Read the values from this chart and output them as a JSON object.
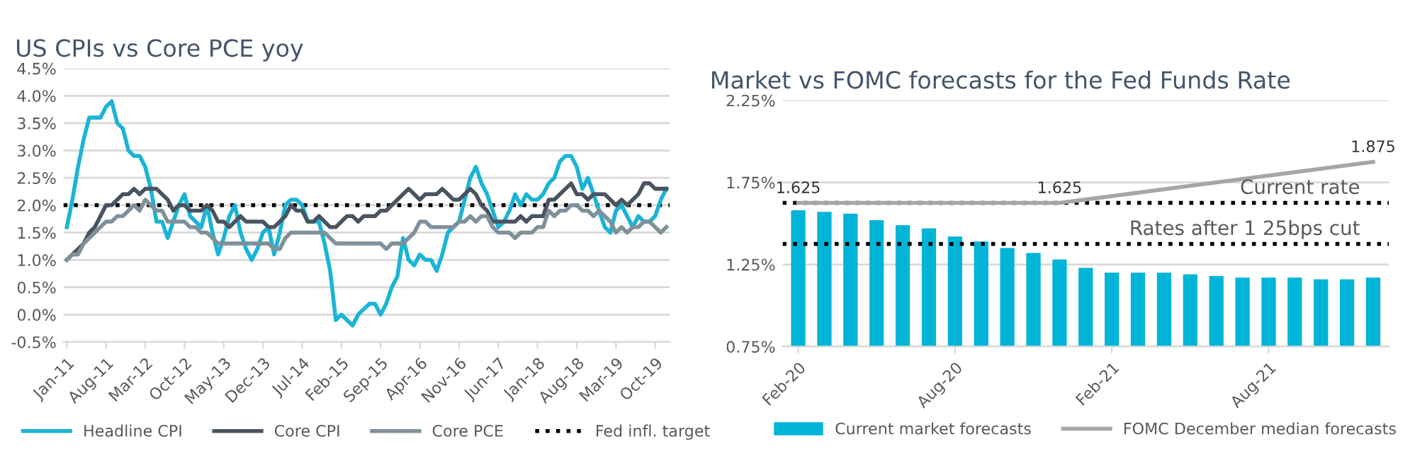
{
  "chart_data": [
    {
      "type": "line",
      "title": "US CPIs vs Core PCE yoy",
      "categories": [
        "Jan-11",
        null,
        null,
        null,
        null,
        null,
        null,
        "Aug-11",
        null,
        null,
        null,
        null,
        null,
        null,
        "Mar-12",
        null,
        null,
        null,
        null,
        null,
        null,
        "Oct-12",
        null,
        null,
        null,
        null,
        null,
        null,
        "May-13",
        null,
        null,
        null,
        null,
        null,
        null,
        "Dec-13",
        null,
        null,
        null,
        null,
        null,
        null,
        "Jul-14",
        null,
        null,
        null,
        null,
        null,
        null,
        "Feb-15",
        null,
        null,
        null,
        null,
        null,
        null,
        "Sep-15",
        null,
        null,
        null,
        null,
        null,
        null,
        "Apr-16",
        null,
        null,
        null,
        null,
        null,
        null,
        "Nov-16",
        null,
        null,
        null,
        null,
        null,
        null,
        "Jun-17",
        null,
        null,
        null,
        null,
        null,
        null,
        "Jan-18",
        null,
        null,
        null,
        null,
        null,
        null,
        "Aug-18",
        null,
        null,
        null,
        null,
        null,
        null,
        "Mar-19",
        null,
        null,
        null,
        null,
        null,
        null,
        "Oct-19",
        null,
        null
      ],
      "series": [
        {
          "name": "Headline CPI",
          "color": "#1ab4d6",
          "values": [
            1.6,
            2.1,
            2.7,
            3.2,
            3.6,
            3.6,
            3.6,
            3.8,
            3.9,
            3.5,
            3.4,
            3.0,
            2.9,
            2.9,
            2.7,
            2.3,
            1.7,
            1.7,
            1.4,
            1.7,
            2.0,
            2.2,
            1.8,
            1.7,
            1.6,
            2.0,
            1.5,
            1.1,
            1.4,
            1.8,
            2.0,
            1.5,
            1.2,
            1.0,
            1.2,
            1.5,
            1.6,
            1.1,
            1.5,
            2.0,
            2.1,
            2.1,
            2.0,
            1.7,
            1.7,
            1.7,
            1.3,
            0.8,
            -0.1,
            0.0,
            -0.1,
            -0.2,
            0.0,
            0.1,
            0.2,
            0.2,
            0.0,
            0.2,
            0.5,
            0.7,
            1.4,
            1.0,
            0.9,
            1.1,
            1.0,
            1.0,
            0.8,
            1.1,
            1.5,
            1.6,
            1.7,
            2.1,
            2.5,
            2.7,
            2.4,
            2.2,
            1.9,
            1.6,
            1.7,
            1.9,
            2.2,
            2.0,
            2.2,
            2.1,
            2.1,
            2.2,
            2.4,
            2.5,
            2.8,
            2.9,
            2.9,
            2.7,
            2.3,
            2.5,
            2.2,
            1.9,
            1.6,
            1.5,
            1.9,
            2.0,
            1.8,
            1.6,
            1.8,
            1.7,
            1.7,
            1.8,
            2.1,
            2.3
          ]
        },
        {
          "name": "Core CPI",
          "color": "#4a5460",
          "values": [
            1.0,
            1.1,
            1.2,
            1.3,
            1.5,
            1.6,
            1.8,
            2.0,
            2.0,
            2.1,
            2.2,
            2.2,
            2.3,
            2.2,
            2.3,
            2.3,
            2.3,
            2.2,
            2.1,
            1.9,
            2.0,
            2.0,
            1.9,
            1.9,
            1.9,
            2.0,
            1.9,
            1.7,
            1.7,
            1.6,
            1.7,
            1.8,
            1.7,
            1.7,
            1.7,
            1.7,
            1.6,
            1.6,
            1.7,
            1.8,
            2.0,
            1.9,
            1.9,
            1.7,
            1.7,
            1.8,
            1.7,
            1.6,
            1.6,
            1.7,
            1.8,
            1.8,
            1.7,
            1.8,
            1.8,
            1.8,
            1.9,
            1.9,
            2.0,
            2.1,
            2.2,
            2.3,
            2.2,
            2.1,
            2.2,
            2.2,
            2.2,
            2.3,
            2.2,
            2.1,
            2.1,
            2.2,
            2.3,
            2.2,
            2.0,
            1.9,
            1.7,
            1.7,
            1.7,
            1.7,
            1.7,
            1.8,
            1.7,
            1.8,
            1.8,
            1.8,
            2.1,
            2.1,
            2.2,
            2.3,
            2.4,
            2.2,
            2.2,
            2.1,
            2.2,
            2.2,
            2.2,
            2.1,
            2.0,
            2.1,
            2.0,
            2.1,
            2.2,
            2.4,
            2.4,
            2.3,
            2.3,
            2.3
          ]
        },
        {
          "name": "Core PCE",
          "color": "#7f9099",
          "values": [
            1.0,
            1.1,
            1.1,
            1.3,
            1.4,
            1.5,
            1.6,
            1.7,
            1.7,
            1.8,
            1.8,
            1.9,
            2.0,
            1.9,
            2.1,
            2.0,
            1.9,
            1.9,
            1.7,
            1.7,
            1.7,
            1.7,
            1.6,
            1.6,
            1.5,
            1.5,
            1.4,
            1.3,
            1.3,
            1.3,
            1.3,
            1.3,
            1.3,
            1.3,
            1.3,
            1.3,
            1.3,
            1.2,
            1.2,
            1.4,
            1.5,
            1.5,
            1.5,
            1.5,
            1.5,
            1.5,
            1.5,
            1.4,
            1.3,
            1.3,
            1.3,
            1.3,
            1.3,
            1.3,
            1.3,
            1.3,
            1.3,
            1.2,
            1.3,
            1.3,
            1.3,
            1.4,
            1.5,
            1.7,
            1.7,
            1.6,
            1.6,
            1.6,
            1.6,
            1.6,
            1.7,
            1.7,
            1.8,
            1.7,
            1.8,
            1.8,
            1.6,
            1.5,
            1.5,
            1.5,
            1.4,
            1.5,
            1.5,
            1.5,
            1.6,
            1.6,
            1.9,
            1.8,
            1.9,
            1.9,
            2.0,
            2.0,
            1.9,
            1.9,
            1.8,
            1.9,
            1.8,
            1.7,
            1.5,
            1.6,
            1.5,
            1.6,
            1.6,
            1.7,
            1.7,
            1.6,
            1.5,
            1.6
          ]
        }
      ],
      "ref_lines": [
        {
          "axis": "y",
          "value": 2.0,
          "label": "Fed infl. target",
          "color": "#000000",
          "line_style": "dotted"
        }
      ],
      "ylim": [
        -0.5,
        4.5
      ],
      "yticks": [
        {
          "value": -0.5,
          "label": "-0.5%"
        },
        {
          "value": 0.0,
          "label": "0.0%"
        },
        {
          "value": 0.5,
          "label": "0.5%"
        },
        {
          "value": 1.0,
          "label": "1.0%"
        },
        {
          "value": 1.5,
          "label": "1.5%"
        },
        {
          "value": 2.0,
          "label": "2.0%"
        },
        {
          "value": 2.5,
          "label": "2.5%"
        },
        {
          "value": 3.0,
          "label": "3.0%"
        },
        {
          "value": 3.5,
          "label": "3.5%"
        },
        {
          "value": 4.0,
          "label": "4.0%"
        },
        {
          "value": 4.5,
          "label": "4.5%"
        }
      ],
      "grid": "y",
      "legend": "bottom",
      "marker": "none",
      "line_style": "solid"
    },
    {
      "type": "bar",
      "title": "Market vs FOMC forecasts for the Fed Funds Rate",
      "categories": [
        "Feb-20",
        null,
        null,
        null,
        null,
        null,
        "Aug-20",
        null,
        null,
        null,
        null,
        null,
        "Feb-21",
        null,
        null,
        null,
        null,
        null,
        "Aug-21",
        null,
        null,
        null,
        null
      ],
      "series": [
        {
          "name": "Current market forecasts",
          "color": "#00b4d8",
          "values": [
            1.58,
            1.57,
            1.56,
            1.52,
            1.49,
            1.47,
            1.42,
            1.39,
            1.35,
            1.32,
            1.28,
            1.23,
            1.2,
            1.2,
            1.2,
            1.19,
            1.18,
            1.17,
            1.17,
            1.17,
            1.16,
            1.16,
            1.17
          ]
        },
        {
          "name": "FOMC December median forecasts",
          "type": "line",
          "color": "#a6a6a6",
          "values": [
            1.625,
            1.625,
            1.625,
            1.625,
            1.625,
            1.625,
            1.625,
            1.625,
            1.625,
            1.625,
            1.625,
            null,
            null,
            null,
            null,
            null,
            null,
            null,
            null,
            null,
            null,
            null,
            1.875
          ],
          "value_labels": [
            "1.625",
            null,
            null,
            null,
            null,
            null,
            null,
            null,
            null,
            null,
            "1.625",
            null,
            null,
            null,
            null,
            null,
            null,
            null,
            null,
            null,
            null,
            null,
            "1.875"
          ]
        }
      ],
      "ref_lines": [
        {
          "axis": "y",
          "value": 1.625,
          "label": "Current rate",
          "color": "#000000",
          "line_style": "dotted"
        },
        {
          "axis": "y",
          "value": 1.375,
          "label": "Rates after 1 25bps cut",
          "color": "#000000",
          "line_style": "dotted"
        }
      ],
      "ylim": [
        0.75,
        2.25
      ],
      "yticks": [
        {
          "value": 0.75,
          "label": "0.75%"
        },
        {
          "value": 1.25,
          "label": "1.25%"
        },
        {
          "value": 1.75,
          "label": "1.75%"
        },
        {
          "value": 2.25,
          "label": "2.25%"
        }
      ],
      "grid": "y",
      "legend": "bottom"
    }
  ]
}
